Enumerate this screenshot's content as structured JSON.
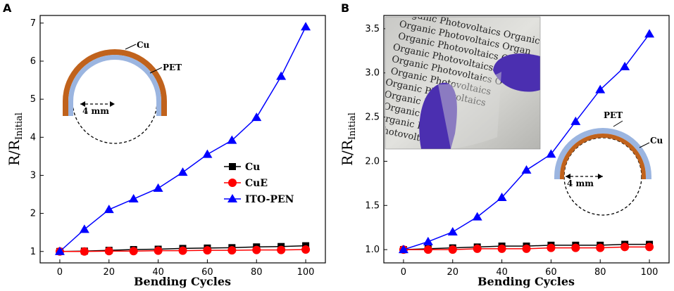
{
  "chart_data": [
    {
      "panel": "A",
      "type": "line",
      "xlabel": "Bending Cycles",
      "ylabel_main": "R/R",
      "ylabel_sub": "Initial",
      "xlim": [
        -8,
        108
      ],
      "ylim": [
        0.7,
        7.2
      ],
      "xticks": [
        0,
        20,
        40,
        60,
        80,
        100
      ],
      "yticks": [
        1,
        2,
        3,
        4,
        5,
        6,
        7
      ],
      "x": [
        0,
        10,
        20,
        30,
        40,
        50,
        60,
        70,
        80,
        90,
        100
      ],
      "series": [
        {
          "name": "Cu",
          "color": "#000000",
          "marker": "square",
          "values": [
            1.0,
            1.01,
            1.03,
            1.05,
            1.06,
            1.08,
            1.09,
            1.1,
            1.12,
            1.13,
            1.15
          ]
        },
        {
          "name": "CuE",
          "color": "#ff0000",
          "marker": "circle",
          "values": [
            1.0,
            1.0,
            1.01,
            1.01,
            1.02,
            1.02,
            1.03,
            1.03,
            1.04,
            1.04,
            1.05
          ]
        },
        {
          "name": "ITO-PEN",
          "color": "#0000ff",
          "marker": "triangle",
          "values": [
            1.0,
            1.58,
            2.1,
            2.38,
            2.66,
            3.08,
            3.55,
            3.92,
            4.52,
            5.6,
            6.9
          ]
        }
      ],
      "legend": [
        "Cu",
        "CuE",
        "ITO-PEN"
      ],
      "inset": {
        "label_cu": "Cu",
        "label_pet": "PET",
        "radius_label": "4 mm"
      }
    },
    {
      "panel": "B",
      "type": "line",
      "xlabel": "Bending Cycles",
      "ylabel_main": "R/R",
      "ylabel_sub": "Initial",
      "xlim": [
        -8,
        108
      ],
      "ylim": [
        0.85,
        3.65
      ],
      "xticks": [
        0,
        20,
        40,
        60,
        80,
        100
      ],
      "yticks": [
        1.0,
        1.5,
        2.0,
        2.5,
        3.0,
        3.5
      ],
      "x": [
        0,
        10,
        20,
        30,
        40,
        50,
        60,
        70,
        80,
        90,
        100
      ],
      "series": [
        {
          "name": "Cu",
          "color": "#000000",
          "marker": "square",
          "values": [
            1.0,
            1.01,
            1.02,
            1.03,
            1.04,
            1.04,
            1.05,
            1.05,
            1.05,
            1.06,
            1.06
          ]
        },
        {
          "name": "CuE",
          "color": "#ff0000",
          "marker": "circle",
          "values": [
            1.0,
            1.0,
            1.0,
            1.01,
            1.01,
            1.01,
            1.02,
            1.02,
            1.02,
            1.03,
            1.03
          ]
        },
        {
          "name": "ITO-PEN",
          "color": "#0000ff",
          "marker": "triangle",
          "values": [
            1.0,
            1.09,
            1.2,
            1.37,
            1.59,
            1.9,
            2.08,
            2.45,
            2.81,
            3.07,
            3.44
          ]
        }
      ],
      "inset": {
        "label_cu": "Cu",
        "label_pet": "PET",
        "radius_label": "4 mm"
      },
      "photo_text": [
        "Organic Photovoltaics Organic",
        "Organic Photovoltaics Organ",
        "Organic Photovoltaics Org",
        "Organic Photovoltaics Or",
        "Organic Photovoltaics O",
        "Organic Photovoltaics",
        "Organic Photovoltaics",
        "Organic Photo",
        "Organic Photo",
        "Organic Photo",
        "Photovoltaics"
      ]
    }
  ],
  "panel_labels": [
    "A",
    "B"
  ]
}
